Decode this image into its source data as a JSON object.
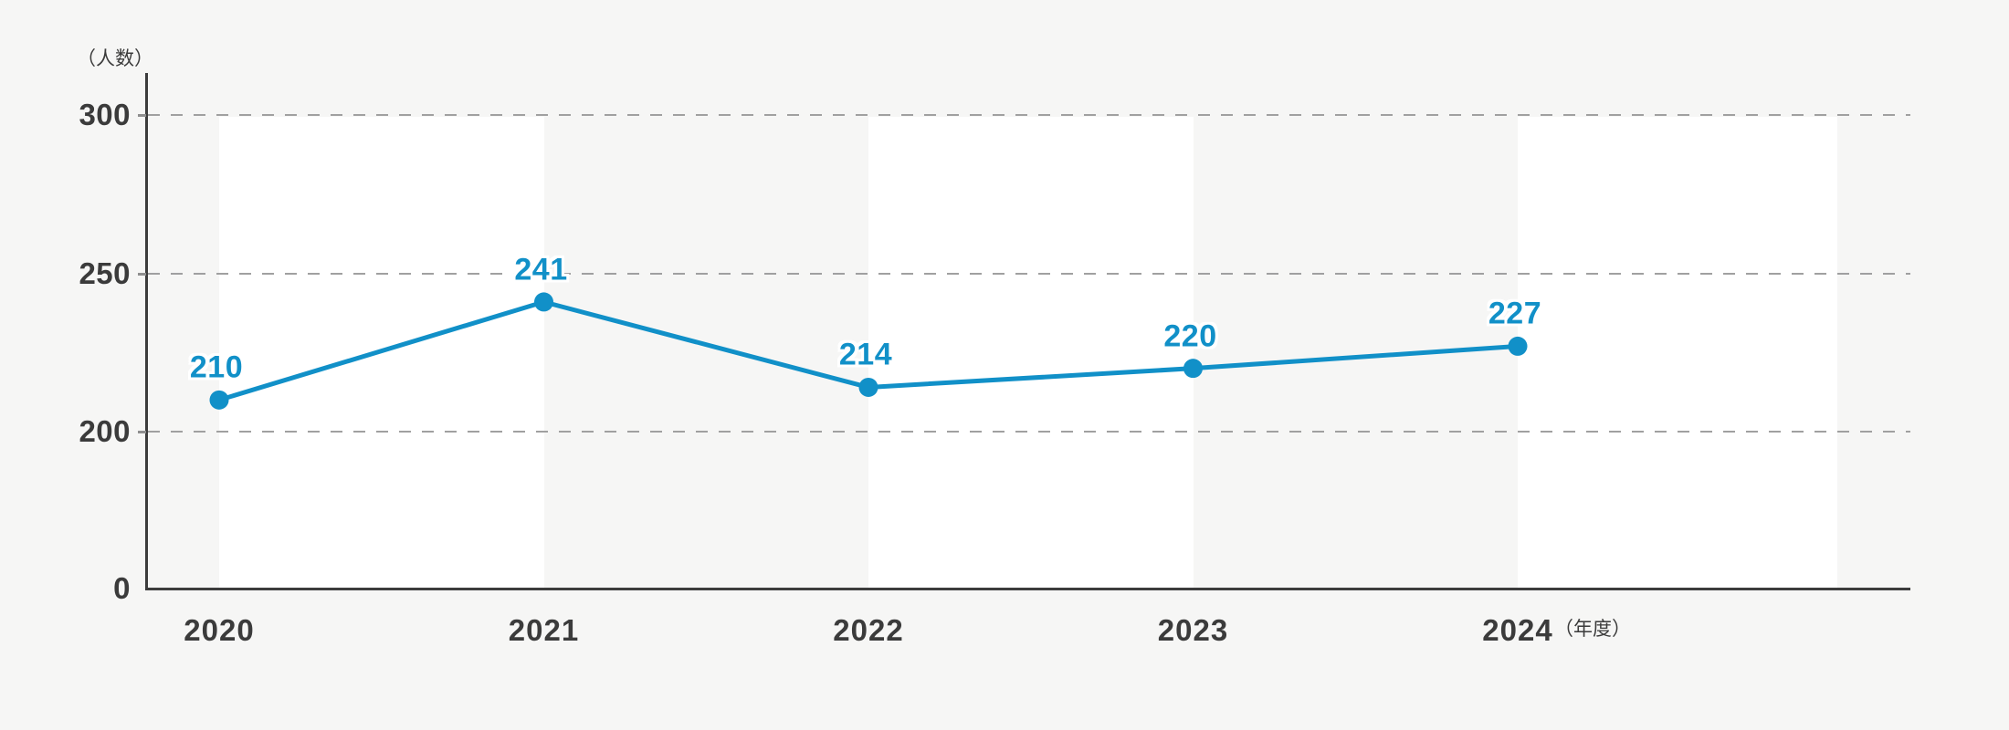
{
  "colors": {
    "background": "#f6f6f5",
    "band": "#ffffff",
    "grid": "#a0a0a0",
    "axis": "#3c3c3c",
    "text": "#3b3b3b",
    "accent": "#1190c8"
  },
  "chart_data": {
    "type": "line",
    "title": "",
    "ylabel": "（人数）",
    "xlabel": "（年度）",
    "categories": [
      "2020",
      "2021",
      "2022",
      "2023",
      "2024"
    ],
    "values": [
      210,
      241,
      214,
      220,
      227
    ],
    "series": [
      {
        "name": "人数",
        "values": [
          210,
          241,
          214,
          220,
          227
        ]
      }
    ],
    "y_ticks": [
      "300",
      "250",
      "200",
      "0"
    ],
    "y_tick_values": [
      300,
      250,
      200,
      0
    ],
    "axis_note": "truncated y-axis: 200-300 linear, 0 at baseline",
    "grid": "horizontal dashed gridlines at 200, 250, 300",
    "legend_position": "none",
    "background_bands": "alternating white vertical bands between year columns"
  }
}
